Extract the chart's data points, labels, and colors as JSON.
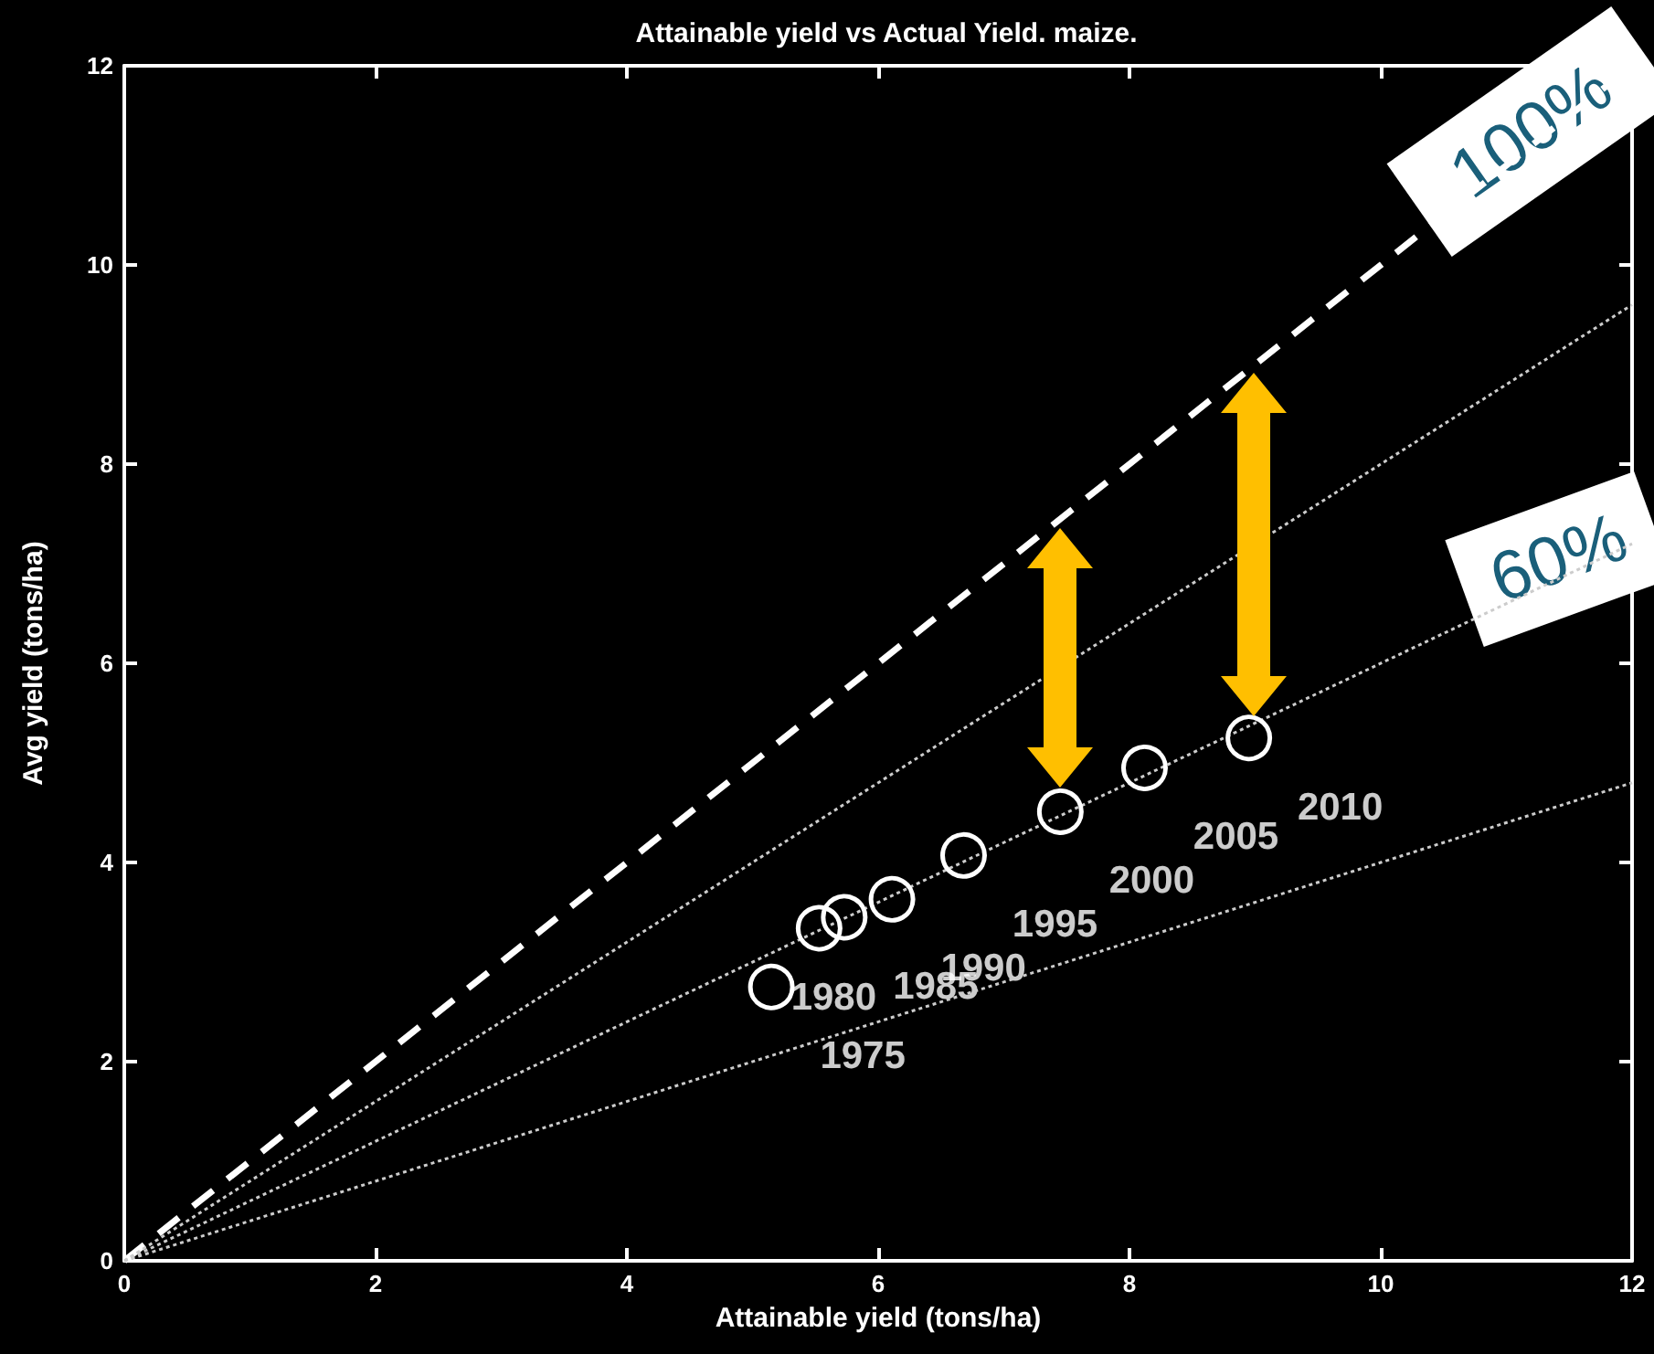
{
  "chart_data": {
    "type": "scatter",
    "title": "Attainable yield vs Actual Yield. maize.",
    "xlabel": "Attainable yield (tons/ha)",
    "ylabel": "Avg yield (tons/ha)",
    "xlim": [
      0,
      12
    ],
    "xticks": [
      0,
      2,
      4,
      6,
      8,
      10,
      12
    ],
    "ylim": [
      0,
      12
    ],
    "yticks": [
      0,
      2,
      4,
      6,
      8,
      10,
      12
    ],
    "grid": false,
    "marker": "circle",
    "annotations": [
      "100%",
      "60%",
      {
        "text": "1975",
        "x": 5.15,
        "y": 2.75
      },
      {
        "text": "1980",
        "x": 5.53,
        "y": 3.34
      },
      {
        "text": "1985",
        "x": 5.73,
        "y": 3.45
      },
      {
        "text": "1990",
        "x": 6.11,
        "y": 3.63
      },
      {
        "text": "1995",
        "x": 6.68,
        "y": 4.07
      },
      {
        "text": "2000",
        "x": 7.45,
        "y": 4.51
      },
      {
        "text": "2005",
        "x": 8.12,
        "y": 4.95
      },
      {
        "text": "2010",
        "x": 8.95,
        "y": 5.25
      }
    ],
    "series": [
      {
        "color": "#ffffff",
        "x": [
          5.15,
          5.53,
          5.73,
          6.11,
          6.68,
          7.45,
          8.12,
          8.95
        ],
        "values": [
          2.75,
          3.34,
          3.45,
          3.63,
          4.07,
          4.51,
          4.95,
          5.25
        ]
      },
      {
        "type": "line",
        "color": "#ffffff",
        "x": [
          0,
          12
        ],
        "values": [
          0,
          12
        ],
        "line_style": "dashed",
        "marker": "none"
      },
      {
        "type": "line",
        "color": "#cccccc",
        "x": [
          0,
          12
        ],
        "values": [
          0,
          9.6
        ],
        "line_style": "dotted",
        "marker": "none"
      },
      {
        "type": "line",
        "color": "#cccccc",
        "x": [
          0,
          12
        ],
        "values": [
          0,
          7.2
        ],
        "line_style": "dotted",
        "marker": "none"
      },
      {
        "type": "line",
        "color": "#cccccc",
        "x": [
          0,
          12
        ],
        "values": [
          0,
          4.8
        ],
        "line_style": "dotted",
        "marker": "none"
      }
    ]
  }
}
